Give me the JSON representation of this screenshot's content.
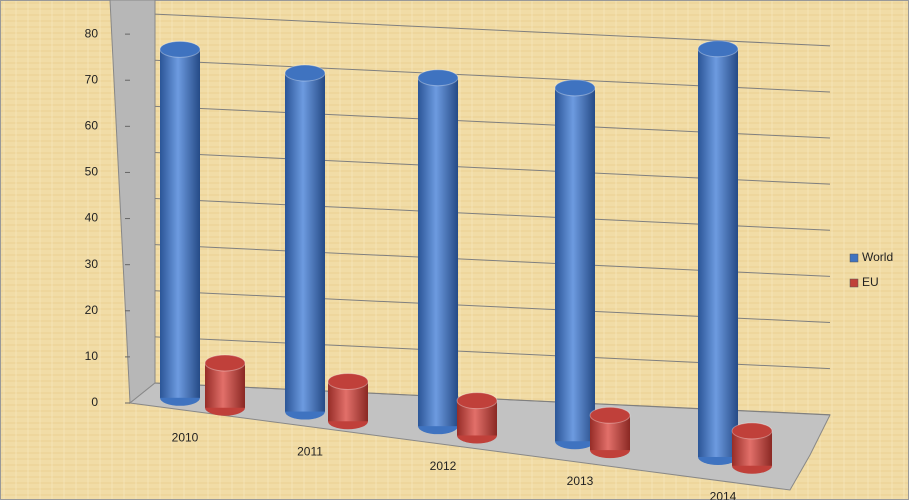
{
  "chart_data": {
    "type": "bar",
    "categories": [
      "2010",
      "2011",
      "2012",
      "2013",
      "2014"
    ],
    "series": [
      {
        "name": "World",
        "color": "#3f73c0",
        "values": [
          70,
          68,
          70,
          71,
          82
        ]
      },
      {
        "name": "EU",
        "color": "#c0403a",
        "values": [
          9,
          8,
          7,
          7,
          7
        ]
      }
    ],
    "ylim": [
      0,
      90
    ],
    "yticks": [
      0,
      10,
      20,
      30,
      40,
      50,
      60,
      70,
      80
    ],
    "grid": true,
    "legend": "right"
  }
}
